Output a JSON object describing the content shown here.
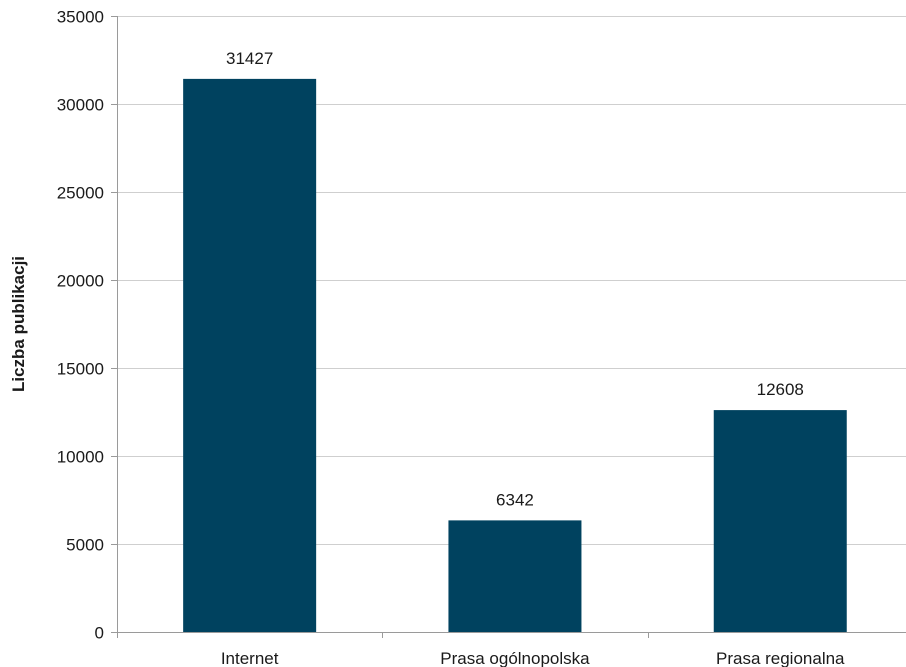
{
  "chart_data": {
    "type": "bar",
    "title": "",
    "xlabel": "",
    "ylabel": "Liczba publikacji",
    "categories": [
      "Internet",
      "Prasa ogólnopolska",
      "Prasa regionalna"
    ],
    "values": [
      31427,
      6342,
      12608
    ],
    "data_labels": [
      "31427",
      "6342",
      "12608"
    ],
    "ylim": [
      0,
      35000
    ],
    "yticks": [
      0,
      5000,
      10000,
      15000,
      20000,
      25000,
      30000,
      35000
    ],
    "ytick_labels": [
      "0",
      "5000",
      "10000",
      "15000",
      "20000",
      "25000",
      "30000",
      "35000"
    ],
    "grid": true,
    "legend": "none",
    "colors": {
      "bar": "#00425f",
      "grid": "#cfcfcf",
      "axis": "#9a9a9a",
      "text": "#1a1a1a"
    }
  }
}
